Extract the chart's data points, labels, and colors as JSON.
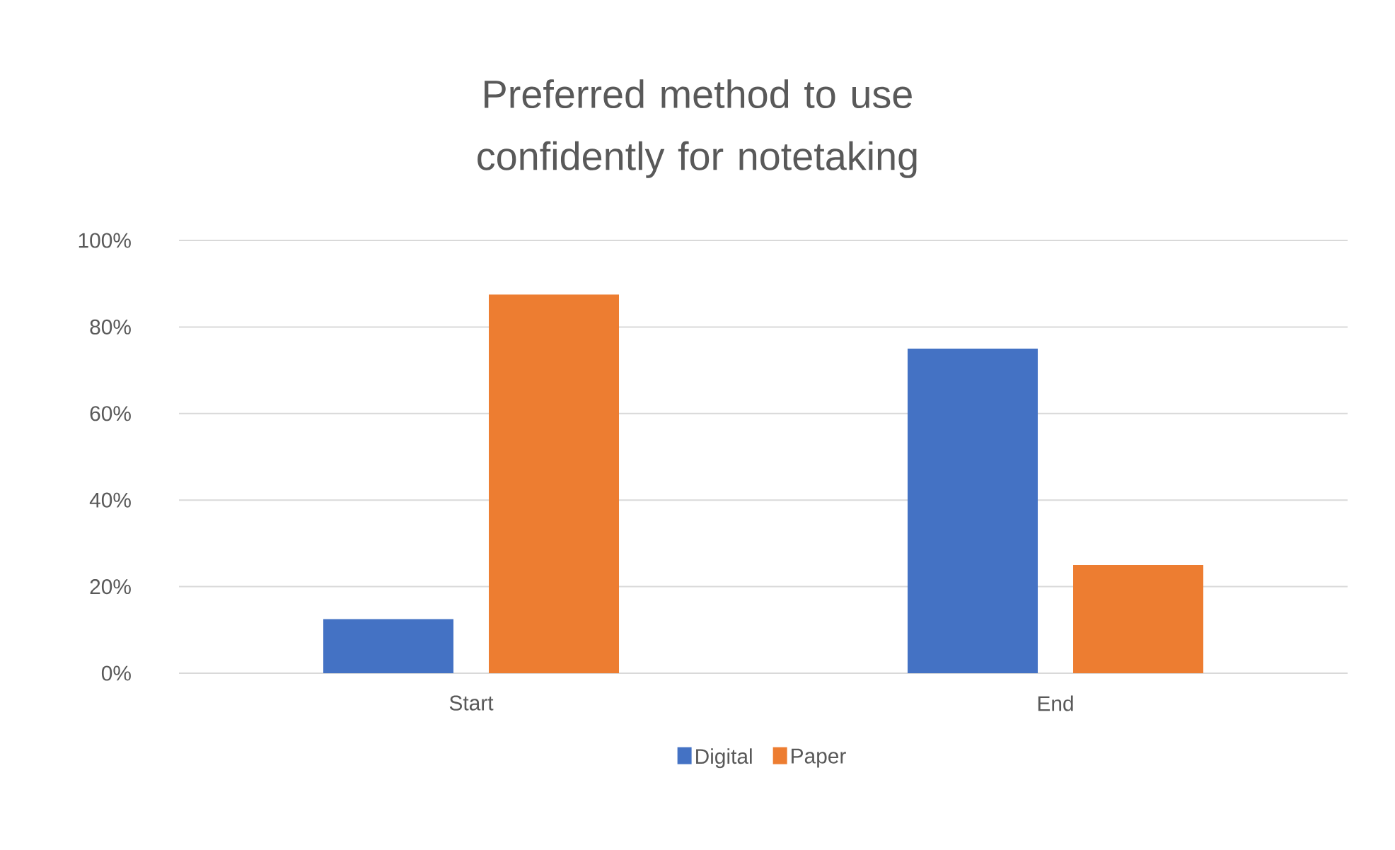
{
  "chart_data": {
    "type": "bar",
    "title": "Preferred method to use confidently for notetaking",
    "categories": [
      "Start",
      "End"
    ],
    "series": [
      {
        "name": "Digital",
        "color": "#4472c4",
        "values": [
          12.5,
          75
        ]
      },
      {
        "name": "Paper",
        "color": "#ed7d31",
        "values": [
          87.5,
          25
        ]
      }
    ],
    "ylim": [
      0,
      100
    ],
    "yticks": [
      {
        "value": 0,
        "label": "0%"
      },
      {
        "value": 20,
        "label": "20%"
      },
      {
        "value": 40,
        "label": "40%"
      },
      {
        "value": 60,
        "label": "60%"
      },
      {
        "value": 80,
        "label": "80%"
      },
      {
        "value": 100,
        "label": "100%"
      }
    ],
    "grid": "y",
    "legend": "bottom"
  }
}
